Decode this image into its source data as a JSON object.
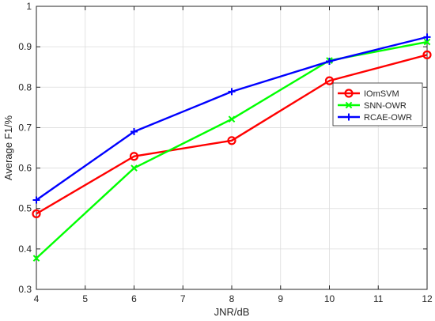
{
  "chart_data": {
    "type": "line",
    "title": "",
    "xlabel": "JNR/dB",
    "ylabel": "Average F1/%",
    "xlim": [
      4,
      12
    ],
    "ylim": [
      0.3,
      1
    ],
    "xticks": [
      4,
      5,
      6,
      7,
      8,
      9,
      10,
      11,
      12
    ],
    "yticks": [
      0.3,
      0.4,
      0.5,
      0.6,
      0.7,
      0.8,
      0.9,
      1
    ],
    "ytick_labels": [
      "0.3",
      "0.4",
      "0.5",
      "0.6",
      "0.7",
      "0.8",
      "0.9",
      "1"
    ],
    "grid": true,
    "legend_position": "right",
    "series": [
      {
        "name": "IOmSVM",
        "color": "#ff0000",
        "marker": "circle",
        "x": [
          4,
          6,
          8,
          10,
          12
        ],
        "y": [
          0.487,
          0.629,
          0.668,
          0.816,
          0.88
        ]
      },
      {
        "name": "SNN-OWR",
        "color": "#00ff00",
        "marker": "x",
        "x": [
          4,
          6,
          8,
          10,
          12
        ],
        "y": [
          0.377,
          0.6,
          0.721,
          0.866,
          0.912
        ]
      },
      {
        "name": "RCAE-OWR",
        "color": "#0000ff",
        "marker": "plus",
        "x": [
          4,
          6,
          8,
          10,
          12
        ],
        "y": [
          0.521,
          0.69,
          0.789,
          0.864,
          0.924
        ]
      }
    ]
  }
}
